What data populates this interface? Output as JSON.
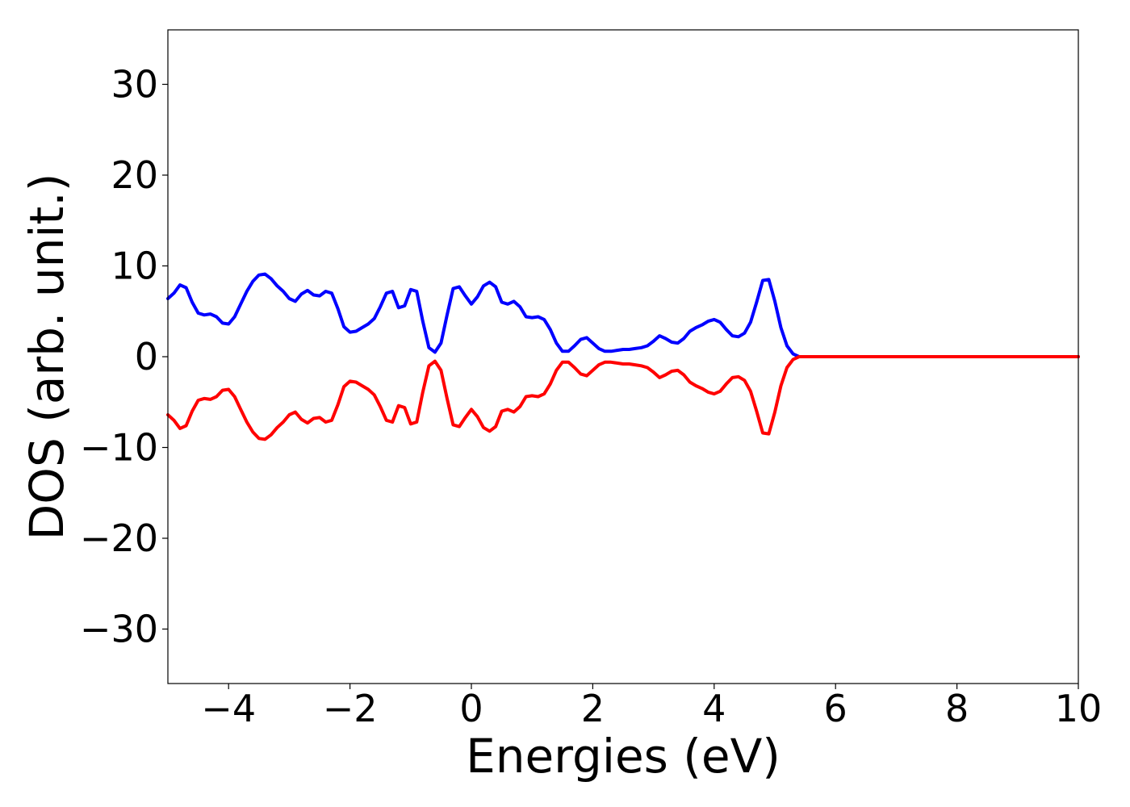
{
  "chart_data": {
    "type": "line",
    "title": "",
    "xlabel": "Energies (eV)",
    "ylabel": "DOS (arb. unit.)",
    "xlim": [
      -5,
      10
    ],
    "ylim": [
      -36,
      36
    ],
    "x_ticks": [
      -4,
      -2,
      0,
      2,
      4,
      6,
      8,
      10
    ],
    "x_tick_labels": [
      "−4",
      "−2",
      "0",
      "2",
      "4",
      "6",
      "8",
      "10"
    ],
    "y_ticks": [
      30,
      20,
      10,
      0,
      -10,
      -20,
      -30
    ],
    "y_tick_labels": [
      "30",
      "20",
      "10",
      "0",
      "−10",
      "−20",
      "−30"
    ],
    "grid": false,
    "legend": "none",
    "series": [
      {
        "color": "#0000ff",
        "x": [
          -5.0,
          -4.9,
          -4.8,
          -4.7,
          -4.6,
          -4.5,
          -4.4,
          -4.3,
          -4.2,
          -4.1,
          -4.0,
          -3.9,
          -3.8,
          -3.7,
          -3.6,
          -3.5,
          -3.4,
          -3.3,
          -3.2,
          -3.1,
          -3.0,
          -2.9,
          -2.8,
          -2.7,
          -2.6,
          -2.5,
          -2.4,
          -2.3,
          -2.2,
          -2.1,
          -2.0,
          -1.9,
          -1.8,
          -1.7,
          -1.6,
          -1.5,
          -1.4,
          -1.3,
          -1.2,
          -1.1,
          -1.0,
          -0.9,
          -0.8,
          -0.7,
          -0.6,
          -0.5,
          -0.4,
          -0.3,
          -0.2,
          -0.1,
          0.0,
          0.1,
          0.2,
          0.3,
          0.4,
          0.5,
          0.6,
          0.7,
          0.8,
          0.9,
          1.0,
          1.1,
          1.2,
          1.3,
          1.4,
          1.5,
          1.6,
          1.7,
          1.8,
          1.9,
          2.0,
          2.1,
          2.2,
          2.3,
          2.4,
          2.5,
          2.6,
          2.7,
          2.8,
          2.9,
          3.0,
          3.1,
          3.2,
          3.3,
          3.4,
          3.5,
          3.6,
          3.7,
          3.8,
          3.9,
          4.0,
          4.1,
          4.2,
          4.3,
          4.4,
          4.5,
          4.6,
          4.7,
          4.8,
          4.9,
          5.0,
          5.1,
          5.2,
          5.3,
          5.4,
          5.5,
          5.6,
          5.7,
          5.8,
          5.9,
          6.0,
          6.1,
          6.2,
          6.3,
          6.4,
          6.5,
          6.6,
          6.7,
          6.8,
          6.9,
          7.0,
          7.2,
          7.5,
          8.0,
          9.0,
          10.0
        ],
        "y": [
          6.4,
          7.0,
          7.9,
          7.6,
          6.0,
          4.8,
          4.6,
          4.7,
          4.4,
          3.7,
          3.6,
          4.4,
          5.8,
          7.2,
          8.3,
          9.0,
          9.1,
          8.6,
          7.8,
          7.2,
          6.4,
          6.1,
          6.9,
          7.3,
          6.8,
          6.7,
          7.2,
          7.0,
          5.3,
          3.3,
          2.7,
          2.8,
          3.2,
          3.6,
          4.2,
          5.5,
          7.0,
          7.2,
          5.4,
          5.6,
          7.4,
          7.2,
          3.9,
          1.0,
          0.5,
          1.5,
          4.6,
          7.5,
          7.7,
          6.7,
          5.8,
          6.6,
          7.8,
          8.2,
          7.7,
          6.0,
          5.8,
          6.1,
          5.5,
          4.4,
          4.3,
          4.4,
          4.1,
          3.0,
          1.5,
          0.6,
          0.6,
          1.2,
          1.9,
          2.1,
          1.5,
          0.9,
          0.6,
          0.6,
          0.7,
          0.8,
          0.8,
          0.9,
          1.0,
          1.2,
          1.7,
          2.3,
          2.0,
          1.6,
          1.5,
          2.0,
          2.8,
          3.2,
          3.5,
          3.9,
          4.1,
          3.8,
          3.0,
          2.3,
          2.2,
          2.6,
          3.8,
          6.0,
          8.4,
          8.5,
          6.1,
          3.2,
          1.2,
          0.3,
          0.0,
          0.0,
          0.0,
          0.0,
          0.0,
          0.0,
          0.0,
          0.0,
          0.0,
          0.0,
          0.0,
          0.0,
          0.0,
          0.0,
          0.0,
          0.0,
          0.0,
          0.0,
          0.0,
          0.0,
          0.0,
          0.0
        ]
      },
      {
        "color": "#ff0000",
        "x": [
          -5.0,
          -4.9,
          -4.8,
          -4.7,
          -4.6,
          -4.5,
          -4.4,
          -4.3,
          -4.2,
          -4.1,
          -4.0,
          -3.9,
          -3.8,
          -3.7,
          -3.6,
          -3.5,
          -3.4,
          -3.3,
          -3.2,
          -3.1,
          -3.0,
          -2.9,
          -2.8,
          -2.7,
          -2.6,
          -2.5,
          -2.4,
          -2.3,
          -2.2,
          -2.1,
          -2.0,
          -1.9,
          -1.8,
          -1.7,
          -1.6,
          -1.5,
          -1.4,
          -1.3,
          -1.2,
          -1.1,
          -1.0,
          -0.9,
          -0.8,
          -0.7,
          -0.6,
          -0.5,
          -0.4,
          -0.3,
          -0.2,
          -0.1,
          0.0,
          0.1,
          0.2,
          0.3,
          0.4,
          0.5,
          0.6,
          0.7,
          0.8,
          0.9,
          1.0,
          1.1,
          1.2,
          1.3,
          1.4,
          1.5,
          1.6,
          1.7,
          1.8,
          1.9,
          2.0,
          2.1,
          2.2,
          2.3,
          2.4,
          2.5,
          2.6,
          2.7,
          2.8,
          2.9,
          3.0,
          3.1,
          3.2,
          3.3,
          3.4,
          3.5,
          3.6,
          3.7,
          3.8,
          3.9,
          4.0,
          4.1,
          4.2,
          4.3,
          4.4,
          4.5,
          4.6,
          4.7,
          4.8,
          4.9,
          5.0,
          5.1,
          5.2,
          5.3,
          5.4,
          5.5,
          5.6,
          5.7,
          5.8,
          5.9,
          6.0,
          6.1,
          6.2,
          6.3,
          6.4,
          6.5,
          6.6,
          6.7,
          6.8,
          6.9,
          7.0,
          7.2,
          7.5,
          8.0,
          9.0,
          10.0
        ],
        "y": [
          -6.4,
          -7.0,
          -7.9,
          -7.6,
          -6.0,
          -4.8,
          -4.6,
          -4.7,
          -4.4,
          -3.7,
          -3.6,
          -4.4,
          -5.8,
          -7.2,
          -8.3,
          -9.0,
          -9.1,
          -8.6,
          -7.8,
          -7.2,
          -6.4,
          -6.1,
          -6.9,
          -7.3,
          -6.8,
          -6.7,
          -7.2,
          -7.0,
          -5.3,
          -3.3,
          -2.7,
          -2.8,
          -3.2,
          -3.6,
          -4.2,
          -5.5,
          -7.0,
          -7.2,
          -5.4,
          -5.6,
          -7.4,
          -7.2,
          -3.9,
          -1.0,
          -0.5,
          -1.5,
          -4.6,
          -7.5,
          -7.7,
          -6.7,
          -5.8,
          -6.6,
          -7.8,
          -8.2,
          -7.7,
          -6.0,
          -5.8,
          -6.1,
          -5.5,
          -4.4,
          -4.3,
          -4.4,
          -4.1,
          -3.0,
          -1.5,
          -0.6,
          -0.6,
          -1.2,
          -1.9,
          -2.1,
          -1.5,
          -0.9,
          -0.6,
          -0.6,
          -0.7,
          -0.8,
          -0.8,
          -0.9,
          -1.0,
          -1.2,
          -1.7,
          -2.3,
          -2.0,
          -1.6,
          -1.5,
          -2.0,
          -2.8,
          -3.2,
          -3.5,
          -3.9,
          -4.1,
          -3.8,
          -3.0,
          -2.3,
          -2.2,
          -2.6,
          -3.8,
          -6.0,
          -8.4,
          -8.5,
          -6.1,
          -3.2,
          -1.2,
          -0.3,
          0.0,
          0.0,
          0.0,
          0.0,
          0.0,
          0.0,
          0.0,
          0.0,
          0.0,
          0.0,
          0.0,
          0.0,
          0.0,
          0.0,
          0.0,
          0.0,
          0.0,
          0.0,
          0.0,
          0.0,
          0.0,
          0.0
        ]
      }
    ]
  }
}
